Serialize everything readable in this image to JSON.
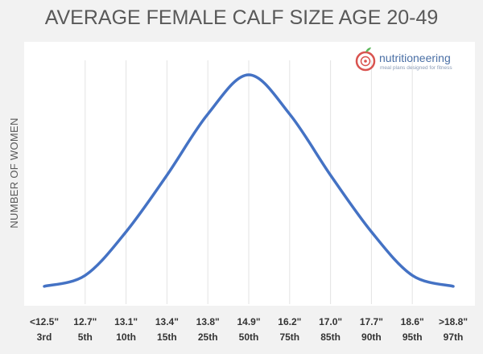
{
  "chart_data": {
    "type": "line",
    "title": "AVERAGE FEMALE CALF SIZE AGE 20-49",
    "ylabel": "NUMBER OF WOMEN",
    "xlabel": "",
    "categories": [
      {
        "value": "<12.5\"",
        "percentile": "3rd"
      },
      {
        "value": "12.7\"",
        "percentile": "5th"
      },
      {
        "value": "13.1\"",
        "percentile": "10th"
      },
      {
        "value": "13.4\"",
        "percentile": "15th"
      },
      {
        "value": "13.8\"",
        "percentile": "25th"
      },
      {
        "value": "14.9\"",
        "percentile": "50th"
      },
      {
        "value": "16.2\"",
        "percentile": "75th"
      },
      {
        "value": "17.0\"",
        "percentile": "85th"
      },
      {
        "value": "17.7\"",
        "percentile": "90th"
      },
      {
        "value": "18.6\"",
        "percentile": "95th"
      },
      {
        "value": ">18.8\"",
        "percentile": "97th"
      }
    ],
    "series": [
      {
        "values": [
          3,
          8,
          28,
          54,
          82,
          100,
          82,
          54,
          28,
          8,
          3
        ]
      }
    ],
    "ylim": [
      0,
      100
    ],
    "grid": "vertical",
    "legend": "none",
    "line_color": "#4472c4"
  },
  "logo": {
    "name": "nutritioneering",
    "tagline": "meal plans designed for fitness",
    "icon": "apple-icon",
    "colors": {
      "apple": "#d9534f",
      "leaf": "#5cb85c"
    }
  }
}
